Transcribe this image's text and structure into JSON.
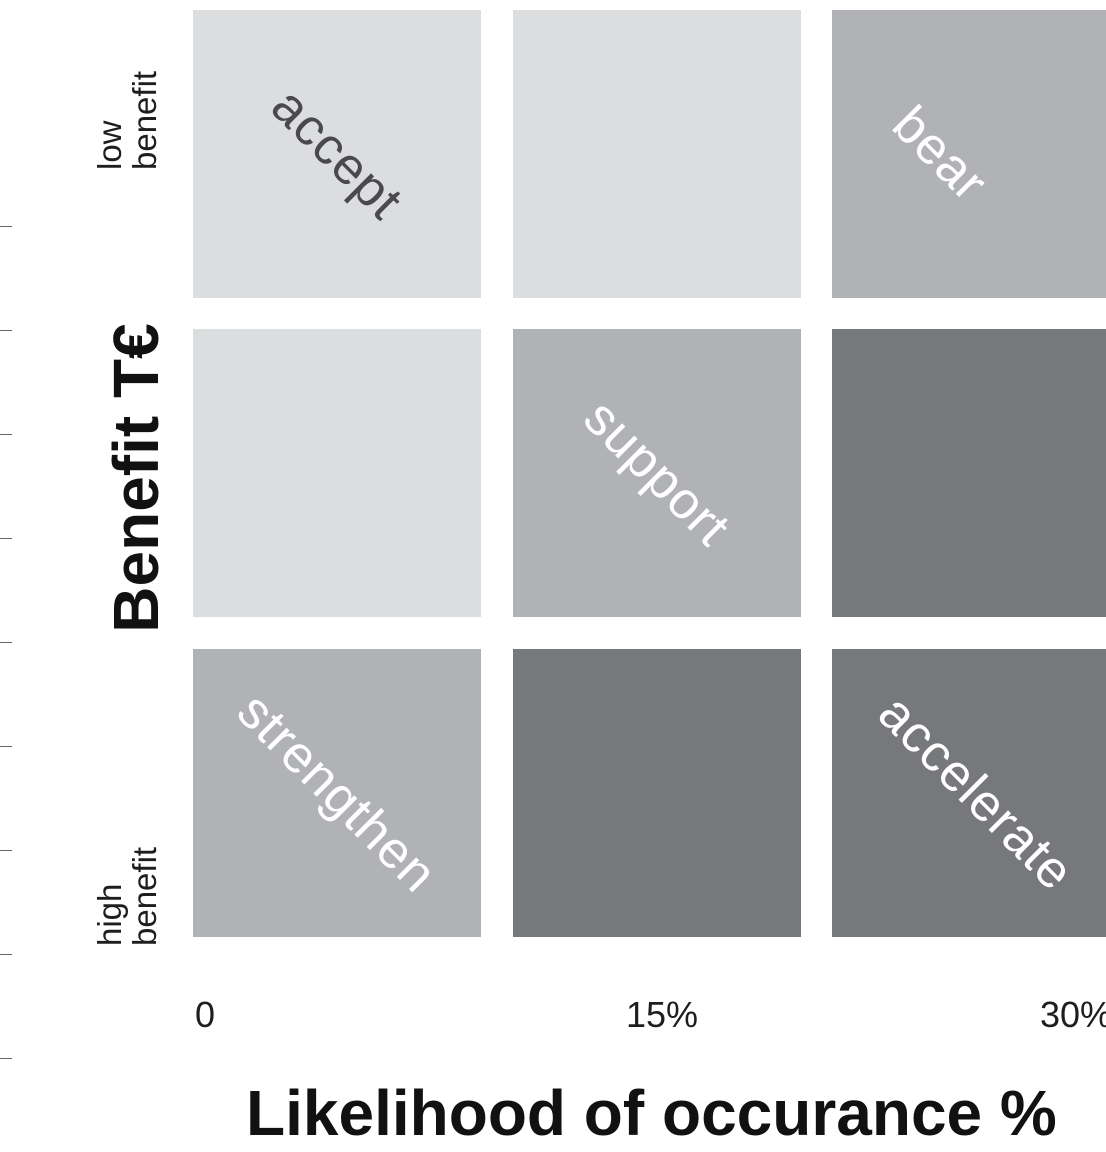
{
  "y_axis": {
    "title": "Benefit T€",
    "low_label": "low\nbenefit",
    "high_label": "high\nbenefit"
  },
  "x_axis": {
    "title": "Likelihood of occurance %",
    "ticks": [
      "0",
      "15%",
      "30%"
    ]
  },
  "colors": {
    "light": "#dcdddf",
    "mid": "#b1b2b6",
    "dark": "#77787c"
  },
  "cells": [
    {
      "label": "accept",
      "color": "#dcdddf"
    },
    {
      "label": "",
      "color": "#dcdddf"
    },
    {
      "label": "bear",
      "color": "#b1b2b6"
    },
    {
      "label": "",
      "color": "#dcdddf"
    },
    {
      "label": "support",
      "color": "#b1b2b6"
    },
    {
      "label": "",
      "color": "#77787c"
    },
    {
      "label": "strengthen",
      "color": "#b1b2b6"
    },
    {
      "label": "",
      "color": "#77787c"
    },
    {
      "label": "accelerate",
      "color": "#77787c"
    }
  ]
}
